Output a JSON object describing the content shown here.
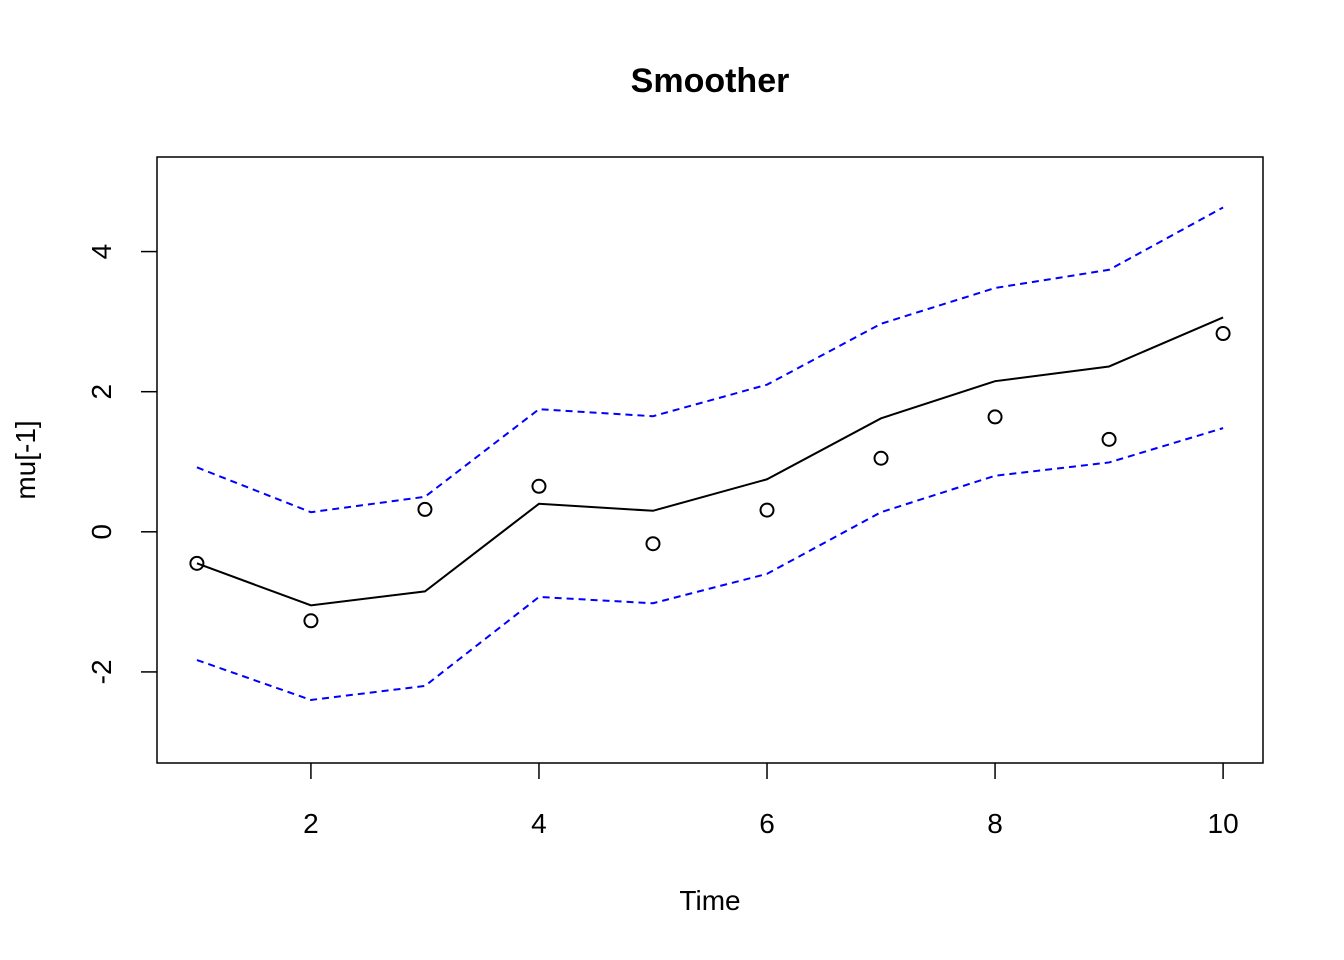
{
  "chart_data": {
    "type": "line",
    "title": "Smoother",
    "xlabel": "Time",
    "ylabel": "mu[-1]",
    "xlim": [
      0.65,
      10.35
    ],
    "ylim": [
      -3.3,
      5.35
    ],
    "x_ticks": [
      2,
      4,
      6,
      8,
      10
    ],
    "y_ticks": [
      -2,
      0,
      2,
      4
    ],
    "x_tick_labels": [
      "2",
      "4",
      "6",
      "8",
      "10"
    ],
    "y_tick_labels": [
      "-2",
      "0",
      "2",
      "4"
    ],
    "grid": false,
    "legend": "none",
    "x": [
      1,
      2,
      3,
      4,
      5,
      6,
      7,
      8,
      9,
      10
    ],
    "series": [
      {
        "values": [
          -0.45,
          -1.05,
          -0.85,
          0.4,
          0.3,
          0.75,
          1.62,
          2.15,
          2.36,
          3.06
        ],
        "style": "solid",
        "color": "#000000"
      },
      {
        "values": [
          0.92,
          0.28,
          0.5,
          1.75,
          1.65,
          2.1,
          2.97,
          3.48,
          3.74,
          4.63
        ],
        "style": "dashed",
        "color": "#0000ff"
      },
      {
        "values": [
          -1.83,
          -2.4,
          -2.2,
          -0.93,
          -1.02,
          -0.6,
          0.28,
          0.8,
          0.99,
          1.48
        ],
        "style": "dashed",
        "color": "#0000ff"
      },
      {
        "values": [
          -0.45,
          -1.27,
          0.32,
          0.65,
          -0.17,
          0.31,
          1.05,
          1.64,
          1.32,
          2.83
        ],
        "style": "points",
        "color": "#000000"
      }
    ]
  }
}
